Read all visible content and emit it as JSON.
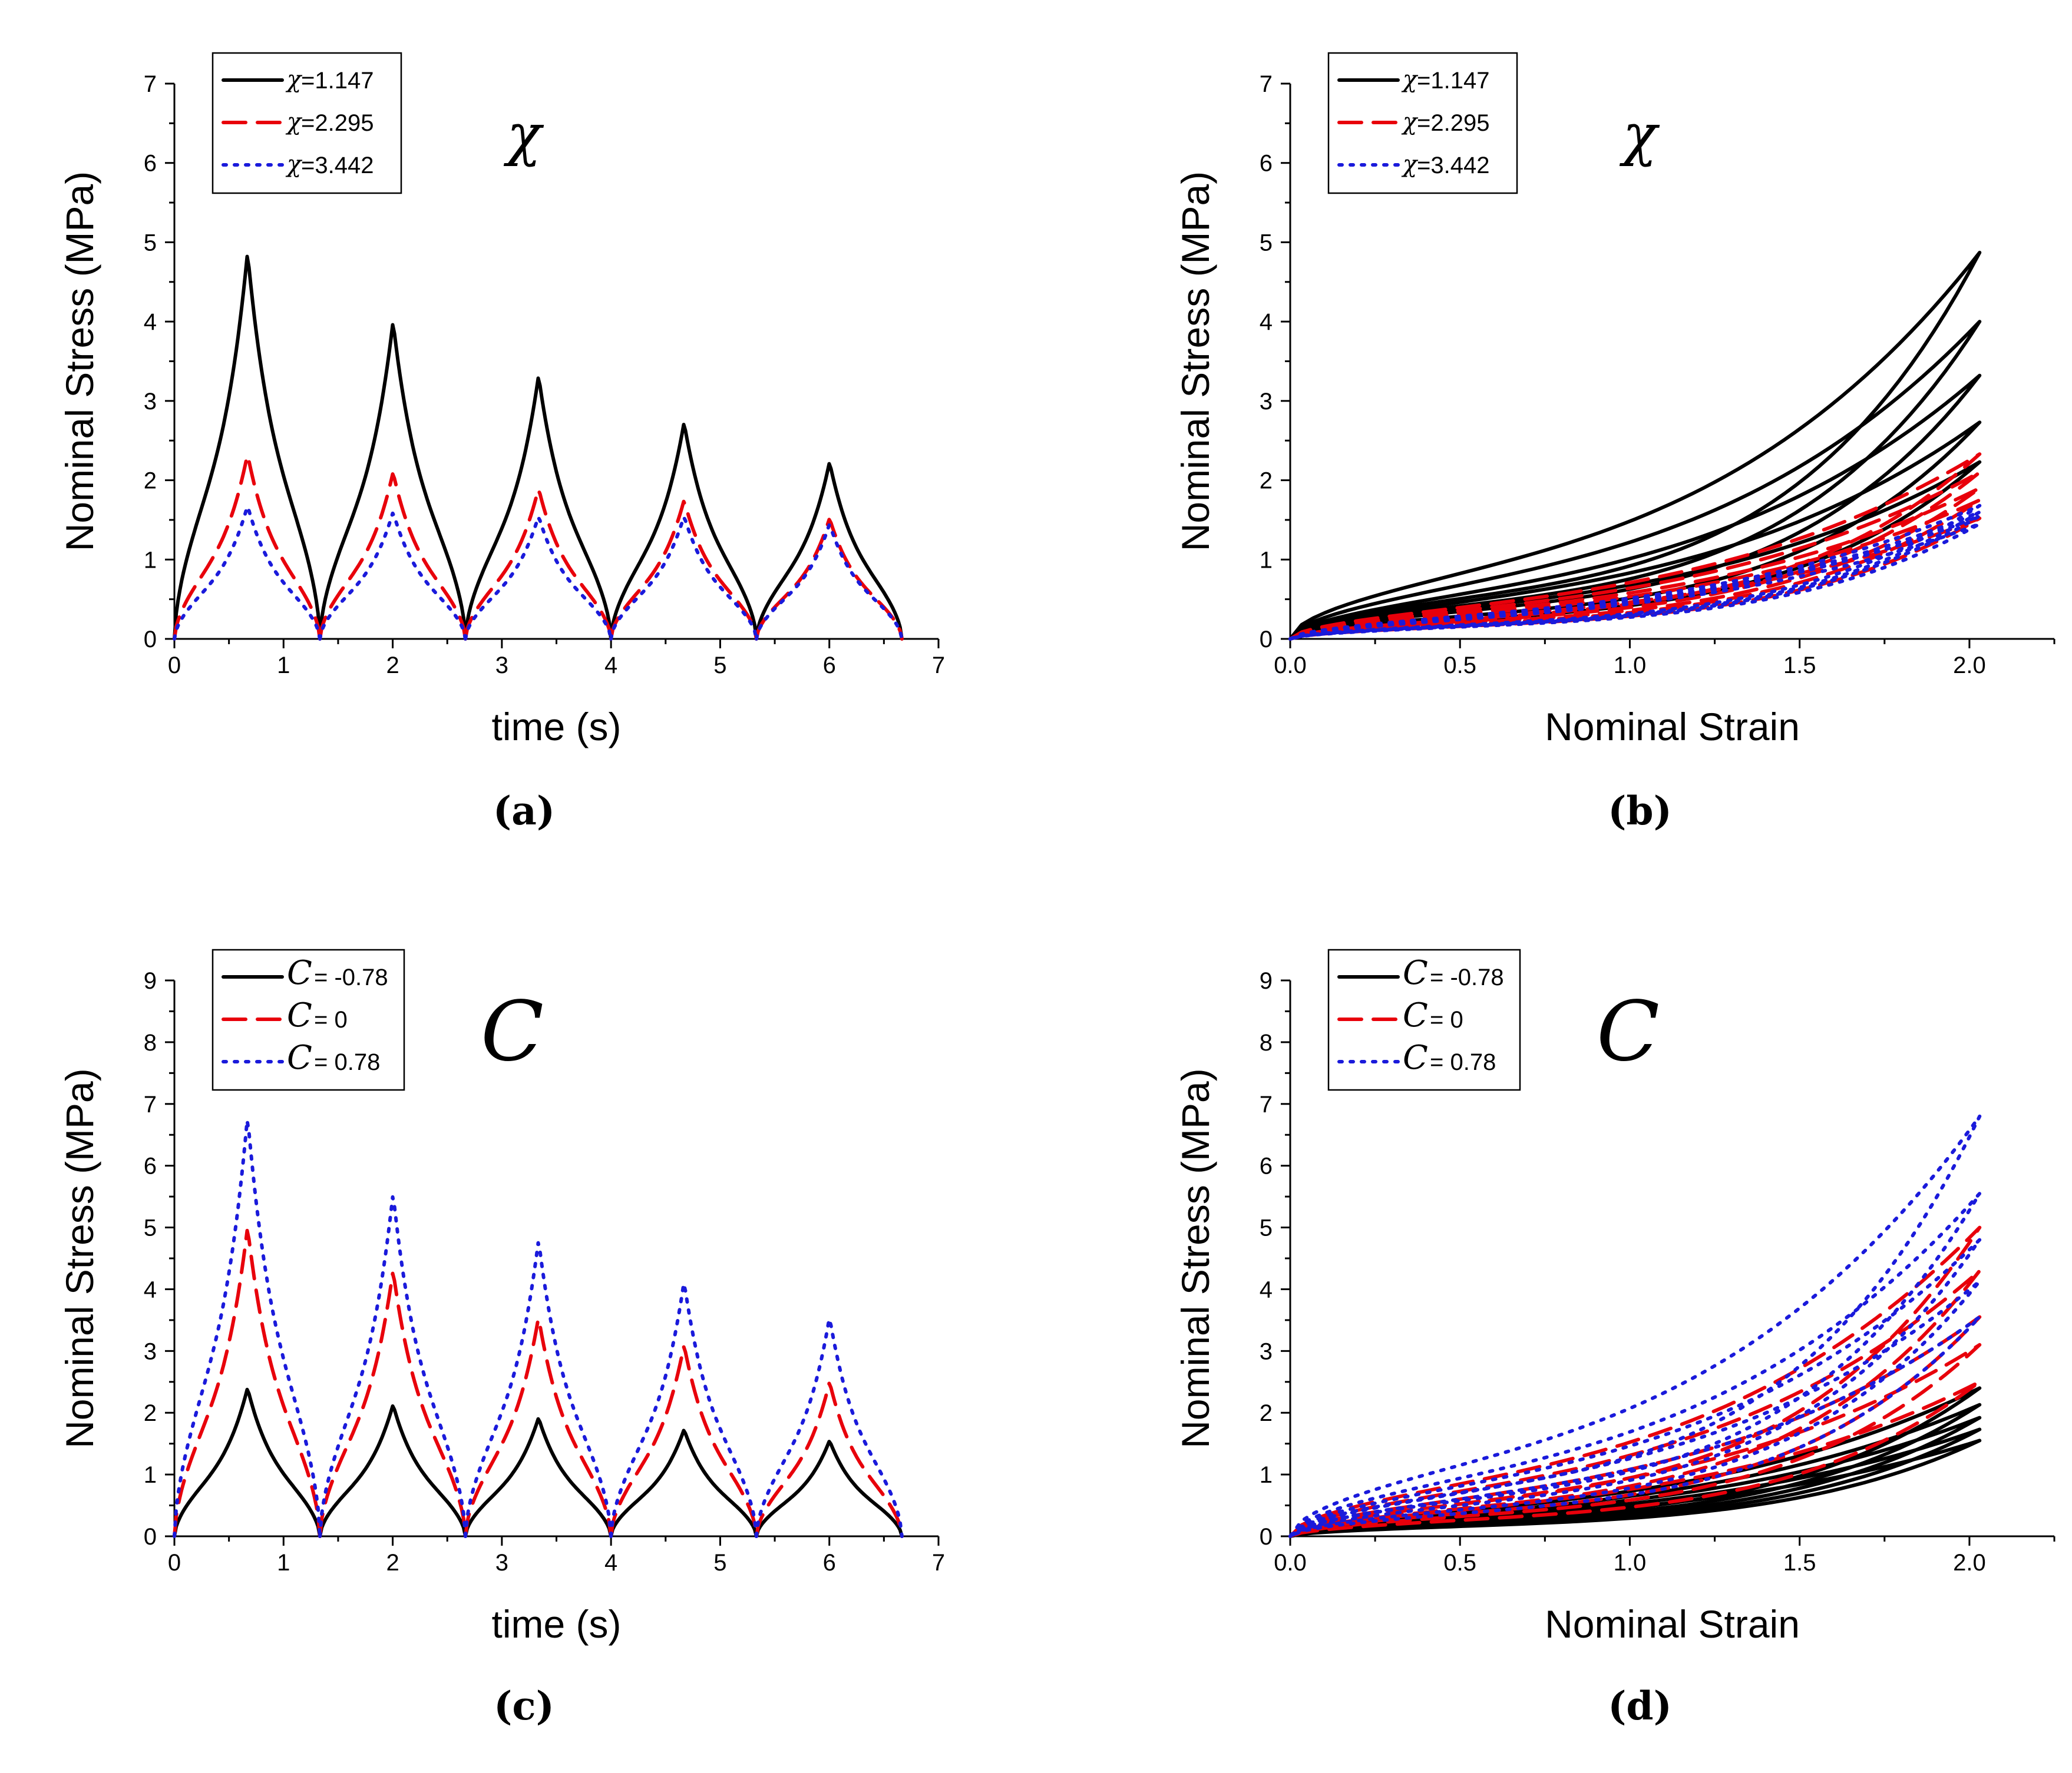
{
  "chart_data": [
    {
      "id": "a",
      "type": "line",
      "caption": "(a)",
      "panel_symbol": "χ",
      "xlabel": "time (s)",
      "ylabel": "Nominal Stress (MPa)",
      "xlim": [
        0,
        7
      ],
      "ylim": [
        0,
        7
      ],
      "xticks": [
        0,
        1,
        2,
        3,
        4,
        5,
        6,
        7
      ],
      "yticks": [
        0,
        1,
        2,
        3,
        4,
        5,
        6,
        7
      ],
      "xtick_format": "0",
      "legend": {
        "position": "top-left"
      },
      "series": [
        {
          "name": "χ =1.147",
          "symbol": "χ",
          "label": "=1.147",
          "color": "#000000",
          "dash": "solid",
          "peaks": [
            4.87,
            4.0,
            3.32,
            2.73,
            2.23
          ]
        },
        {
          "name": "χ =2.295",
          "symbol": "χ",
          "label": "=2.295",
          "color": "#e8000b",
          "dash": "dash",
          "peaks": [
            2.33,
            2.1,
            1.9,
            1.75,
            1.52
          ]
        },
        {
          "name": "χ =3.442",
          "symbol": "χ",
          "label": "=3.442",
          "color": "#1a1adb",
          "dash": "dot",
          "peaks": [
            1.68,
            1.6,
            1.55,
            1.55,
            1.45
          ]
        }
      ],
      "cycle": {
        "period": 1.333,
        "peak_time": 0.67,
        "cycles": 5
      }
    },
    {
      "id": "b",
      "type": "line",
      "caption": "(b)",
      "panel_symbol": "χ",
      "xlabel": "Nominal Strain",
      "ylabel": "Nominal Stress (MPa)",
      "xlim": [
        0,
        2.25
      ],
      "ylim": [
        0,
        7
      ],
      "xticks": [
        0.0,
        0.5,
        1.0,
        1.5,
        2.0
      ],
      "yticks": [
        0,
        1,
        2,
        3,
        4,
        5,
        6,
        7
      ],
      "xtick_format": "0.0",
      "legend": {
        "position": "top-left"
      },
      "max_strain": 2.03,
      "series": [
        {
          "name": "χ =1.147",
          "symbol": "χ",
          "label": "=1.147",
          "color": "#000000",
          "dash": "solid",
          "peaks": [
            4.87,
            4.0,
            3.32,
            2.73,
            2.23
          ]
        },
        {
          "name": "χ =2.295",
          "symbol": "χ",
          "label": "=2.295",
          "color": "#e8000b",
          "dash": "dash",
          "peaks": [
            2.33,
            2.1,
            1.9,
            1.75,
            1.52
          ]
        },
        {
          "name": "χ =3.442",
          "symbol": "χ",
          "label": "=3.442",
          "color": "#1a1adb",
          "dash": "dot",
          "peaks": [
            1.68,
            1.6,
            1.55,
            1.55,
            1.45
          ]
        }
      ]
    },
    {
      "id": "c",
      "type": "line",
      "caption": "(c)",
      "panel_symbol": "C",
      "xlabel": "time (s)",
      "ylabel": "Nominal Stress (MPa)",
      "xlim": [
        0,
        7
      ],
      "ylim": [
        0,
        9
      ],
      "xticks": [
        0,
        1,
        2,
        3,
        4,
        5,
        6,
        7
      ],
      "yticks": [
        0,
        1,
        2,
        3,
        4,
        5,
        6,
        7,
        8,
        9
      ],
      "xtick_format": "0",
      "legend": {
        "position": "top-left"
      },
      "series": [
        {
          "name": "C = -0.78",
          "symbol": "C",
          "label": "= -0.78",
          "color": "#000000",
          "dash": "solid",
          "peaks": [
            2.4,
            2.13,
            1.92,
            1.73,
            1.55
          ]
        },
        {
          "name": "C = 0",
          "symbol": "C",
          "label": "= 0",
          "color": "#e8000b",
          "dash": "dash",
          "peaks": [
            5.0,
            4.3,
            3.55,
            3.1,
            2.5
          ]
        },
        {
          "name": "C = 0.78",
          "symbol": "C",
          "label": "= 0.78",
          "color": "#1a1adb",
          "dash": "dot",
          "peaks": [
            6.8,
            5.55,
            4.8,
            4.13,
            3.55
          ]
        }
      ],
      "cycle": {
        "period": 1.333,
        "peak_time": 0.67,
        "cycles": 5
      }
    },
    {
      "id": "d",
      "type": "line",
      "caption": "(d)",
      "panel_symbol": "C",
      "xlabel": "Nominal Strain",
      "ylabel": "Nominal Stress (MPa)",
      "xlim": [
        0,
        2.25
      ],
      "ylim": [
        0,
        9
      ],
      "xticks": [
        0.0,
        0.5,
        1.0,
        1.5,
        2.0
      ],
      "yticks": [
        0,
        1,
        2,
        3,
        4,
        5,
        6,
        7,
        8,
        9
      ],
      "xtick_format": "0.0",
      "legend": {
        "position": "top-left"
      },
      "max_strain": 2.03,
      "series": [
        {
          "name": "C = -0.78",
          "symbol": "C",
          "label": "= -0.78",
          "color": "#000000",
          "dash": "solid",
          "peaks": [
            2.4,
            2.13,
            1.92,
            1.73,
            1.55
          ]
        },
        {
          "name": "C = 0",
          "symbol": "C",
          "label": "= 0",
          "color": "#e8000b",
          "dash": "dash",
          "peaks": [
            5.0,
            4.3,
            3.55,
            3.1,
            2.5
          ]
        },
        {
          "name": "C = 0.78",
          "symbol": "C",
          "label": "= 0.78",
          "color": "#1a1adb",
          "dash": "dot",
          "peaks": [
            6.8,
            5.55,
            4.8,
            4.13,
            3.55
          ]
        }
      ]
    }
  ]
}
